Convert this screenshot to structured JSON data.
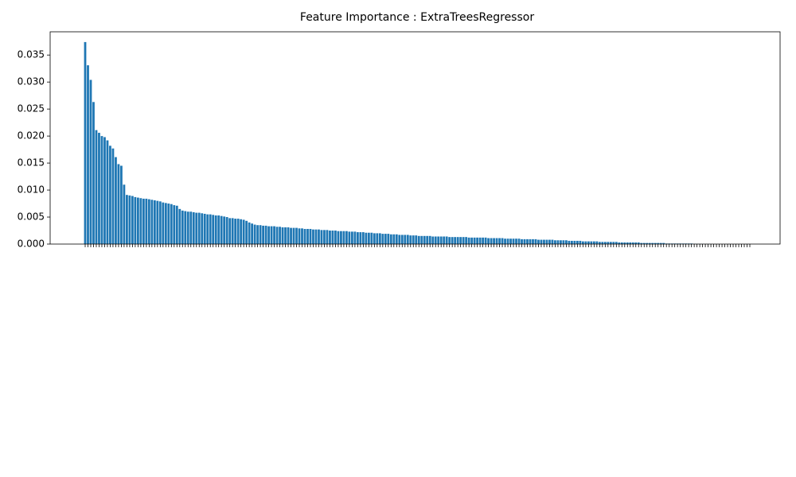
{
  "chart_data": {
    "type": "bar",
    "title": "Feature Importance : ExtraTreesRegressor",
    "color": "#1f77b4",
    "categories": [
      null,
      null,
      null,
      null,
      null,
      null,
      null,
      null,
      null,
      null,
      null,
      null,
      null,
      null,
      null,
      null,
      null,
      null,
      null,
      null,
      null,
      null,
      null,
      null,
      null,
      null,
      null,
      null,
      null,
      null,
      null,
      null,
      null,
      null,
      null,
      null,
      null,
      null,
      null,
      null,
      null,
      null,
      null,
      null,
      null,
      null,
      null,
      null,
      null,
      null,
      null,
      null,
      null,
      null,
      null,
      null,
      null,
      null,
      null,
      null,
      null,
      null,
      null,
      null,
      null,
      null,
      null,
      null,
      null,
      null,
      null,
      null,
      null,
      null,
      null,
      null,
      null,
      null,
      null,
      null,
      null,
      null,
      null,
      null,
      null,
      null,
      null,
      null,
      null,
      null,
      null,
      null,
      null,
      null,
      null,
      null,
      null,
      null,
      null,
      null,
      null,
      null,
      null,
      null,
      null,
      null,
      null,
      null,
      null,
      null,
      null,
      null,
      null,
      null,
      null,
      null,
      null,
      null,
      null,
      null,
      null,
      null,
      null,
      null,
      null,
      null,
      null,
      null,
      null,
      null,
      null,
      null,
      null,
      null,
      null,
      null,
      null,
      null,
      null,
      null,
      null,
      null,
      null,
      null,
      null,
      null,
      null,
      null,
      null,
      null,
      null,
      null,
      null,
      null,
      null,
      null,
      null,
      null,
      null,
      null,
      null,
      null,
      null,
      null,
      null,
      null,
      null,
      null,
      null,
      null,
      null,
      null,
      null,
      null,
      null,
      null,
      null,
      null,
      null,
      null,
      null,
      null,
      null,
      null,
      null,
      null,
      null,
      null,
      null,
      null,
      null,
      null,
      null,
      null,
      null,
      null,
      null,
      null,
      null,
      null,
      null,
      null,
      null,
      null,
      null,
      null,
      null,
      null,
      null,
      null,
      null,
      null,
      null,
      null,
      null,
      null,
      null,
      null,
      null,
      null,
      null,
      null,
      null,
      null,
      null,
      null,
      null,
      null,
      null,
      null,
      null,
      null,
      null,
      null,
      null,
      null,
      null,
      null,
      null,
      null
    ],
    "values": [
      0.0374,
      0.0331,
      0.0304,
      0.0263,
      0.0211,
      0.0206,
      0.02,
      0.0198,
      0.0192,
      0.0182,
      0.0177,
      0.0161,
      0.0148,
      0.0145,
      0.011,
      0.0091,
      0.009,
      0.0089,
      0.0087,
      0.0086,
      0.0085,
      0.0084,
      0.0084,
      0.0083,
      0.0082,
      0.0081,
      0.008,
      0.0079,
      0.0077,
      0.0076,
      0.0075,
      0.0074,
      0.0072,
      0.0071,
      0.0065,
      0.0062,
      0.0061,
      0.006,
      0.006,
      0.0059,
      0.0058,
      0.0058,
      0.0057,
      0.0056,
      0.0055,
      0.0055,
      0.0054,
      0.0053,
      0.0053,
      0.0052,
      0.0051,
      0.005,
      0.0048,
      0.0048,
      0.0047,
      0.0047,
      0.0046,
      0.0045,
      0.0043,
      0.004,
      0.0038,
      0.0036,
      0.0035,
      0.0035,
      0.0034,
      0.0034,
      0.0033,
      0.0033,
      0.0033,
      0.0032,
      0.0032,
      0.0031,
      0.0031,
      0.0031,
      0.003,
      0.003,
      0.003,
      0.0029,
      0.0029,
      0.0028,
      0.0028,
      0.0028,
      0.0027,
      0.0027,
      0.0027,
      0.0026,
      0.0026,
      0.0026,
      0.0025,
      0.0025,
      0.0025,
      0.0024,
      0.0024,
      0.0024,
      0.0024,
      0.0023,
      0.0023,
      0.0023,
      0.0022,
      0.0022,
      0.0022,
      0.0021,
      0.0021,
      0.0021,
      0.002,
      0.002,
      0.002,
      0.0019,
      0.0019,
      0.0019,
      0.0018,
      0.0018,
      0.0018,
      0.0017,
      0.0017,
      0.0017,
      0.0017,
      0.0016,
      0.0016,
      0.0016,
      0.0015,
      0.0015,
      0.0015,
      0.0015,
      0.0015,
      0.0014,
      0.0014,
      0.0014,
      0.0014,
      0.0014,
      0.0014,
      0.0013,
      0.0013,
      0.0013,
      0.0013,
      0.0013,
      0.0013,
      0.0013,
      0.0012,
      0.0012,
      0.0012,
      0.0012,
      0.0012,
      0.0012,
      0.0012,
      0.0011,
      0.0011,
      0.0011,
      0.0011,
      0.0011,
      0.0011,
      0.001,
      0.001,
      0.001,
      0.001,
      0.001,
      0.001,
      0.0009,
      0.0009,
      0.0009,
      0.0009,
      0.0009,
      0.0009,
      0.0008,
      0.0008,
      0.0008,
      0.0008,
      0.0008,
      0.0008,
      0.0007,
      0.0007,
      0.0007,
      0.0007,
      0.0007,
      0.0006,
      0.0006,
      0.0006,
      0.0006,
      0.0006,
      0.0005,
      0.0005,
      0.0005,
      0.0005,
      0.0005,
      0.0005,
      0.0004,
      0.0004,
      0.0004,
      0.0004,
      0.0004,
      0.0004,
      0.0004,
      0.0003,
      0.0003,
      0.0003,
      0.0003,
      0.0003,
      0.0003,
      0.0003,
      0.0003,
      0.0002,
      0.0002,
      0.0002,
      0.0002,
      0.0002,
      0.0002,
      0.0002,
      0.0002,
      0.0002,
      0.0001,
      0.0001,
      0.0001,
      0.0001,
      0.0001,
      0.0001,
      0.0001,
      0.0001,
      0.0001,
      0.0001,
      5e-05,
      3e-05,
      2e-05,
      2e-05,
      1e-05,
      1e-05,
      1e-05,
      0,
      0,
      0,
      0,
      0,
      0,
      0,
      0,
      0,
      0,
      0,
      0,
      0,
      0
    ],
    "ylim": [
      0,
      0.0393
    ],
    "yticks": [
      {
        "value": 0,
        "label": "0.000"
      },
      {
        "value": 0.005,
        "label": "0.005"
      },
      {
        "value": 0.01,
        "label": "0.010"
      },
      {
        "value": 0.015,
        "label": "0.015"
      },
      {
        "value": 0.02,
        "label": "0.020"
      },
      {
        "value": 0.025,
        "label": "0.025"
      },
      {
        "value": 0.03,
        "label": "0.030"
      },
      {
        "value": 0.035,
        "label": "0.035"
      }
    ],
    "grid": false
  }
}
